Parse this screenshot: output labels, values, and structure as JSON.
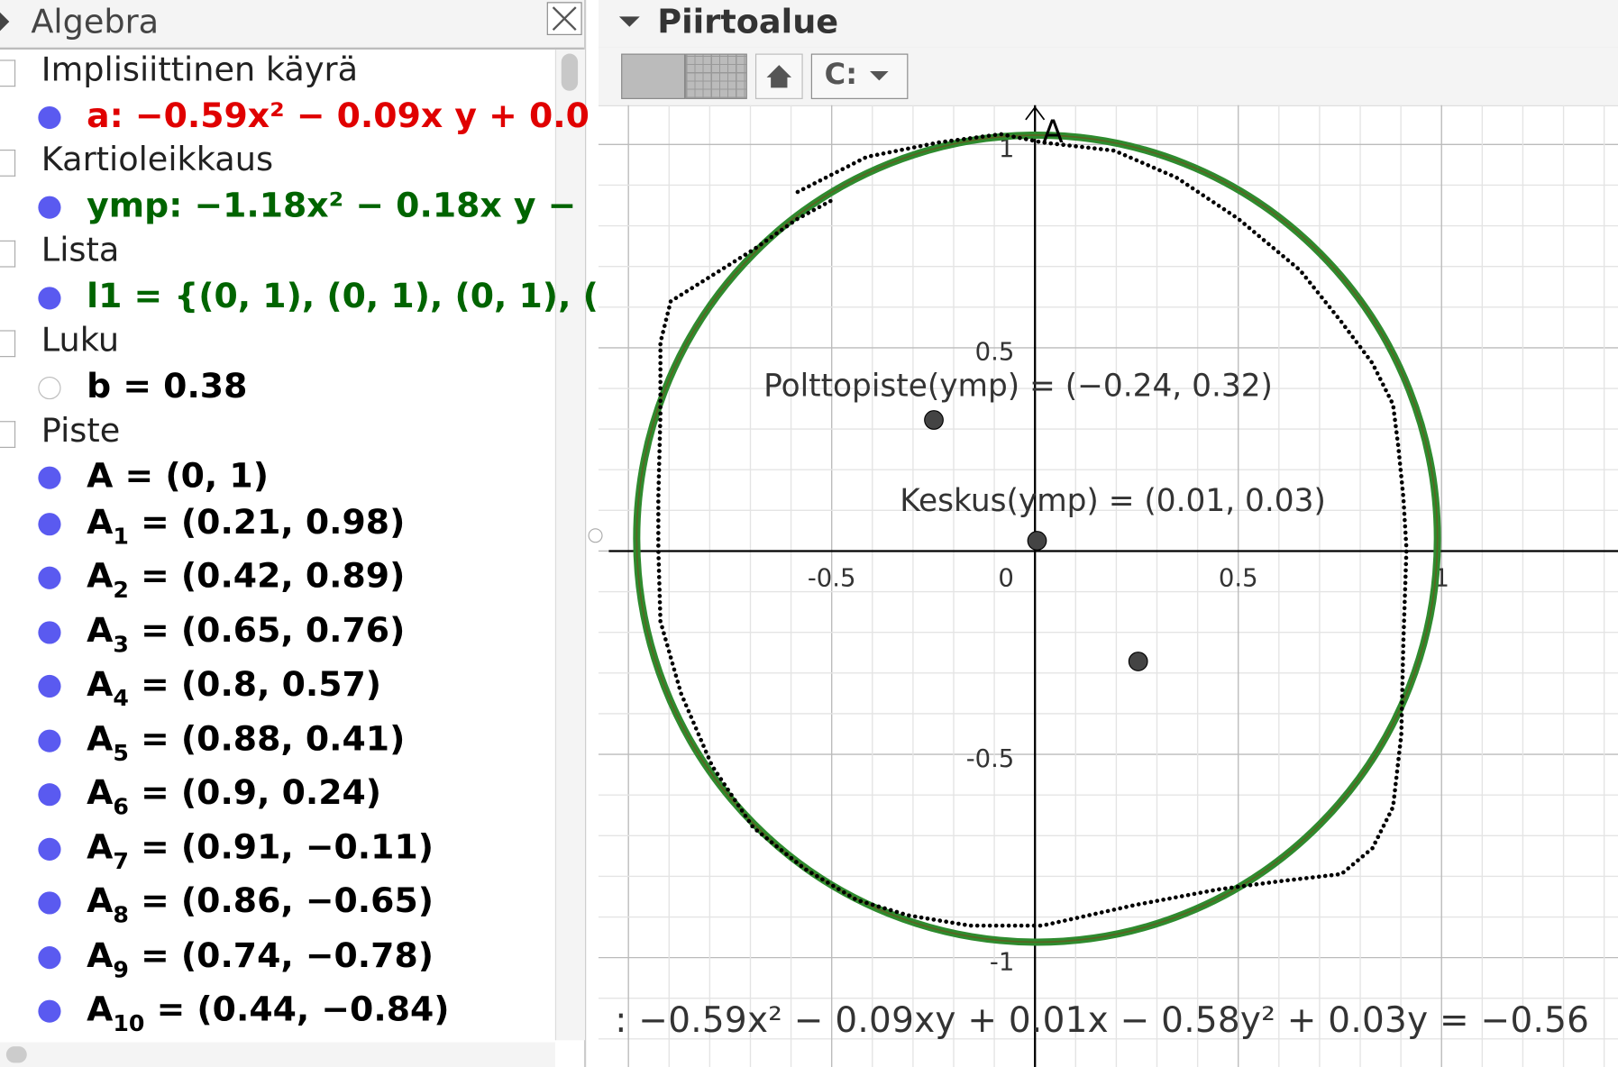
{
  "algebra": {
    "title": "Algebra",
    "groups": [
      {
        "heading": "Implisiittinen käyrä",
        "items": [
          {
            "name": "a: −0.59x² − 0.09x y + 0.0",
            "color": "#e00000",
            "filled": true
          }
        ]
      },
      {
        "heading": "Kartioleikkaus",
        "items": [
          {
            "name": "ymp: −1.18x² − 0.18x y −",
            "color": "#006400",
            "filled": true
          }
        ]
      },
      {
        "heading": "Lista",
        "items": [
          {
            "name": "l1 = {(0, 1), (0, 1), (0, 1), (",
            "color": "#006400",
            "filled": true
          }
        ]
      },
      {
        "heading": "Luku",
        "items": [
          {
            "name": "b = 0.38",
            "color": "#000000",
            "filled": false
          }
        ]
      },
      {
        "heading": "Piste",
        "items": [
          {
            "name": "A = (0, 1)",
            "color": "#000000",
            "filled": true
          },
          {
            "name": "A",
            "sub": "1",
            "rest": " = (0.21, 0.98)",
            "color": "#000000",
            "filled": true
          },
          {
            "name": "A",
            "sub": "2",
            "rest": " = (0.42, 0.89)",
            "color": "#000000",
            "filled": true
          },
          {
            "name": "A",
            "sub": "3",
            "rest": " = (0.65, 0.76)",
            "color": "#000000",
            "filled": true
          },
          {
            "name": "A",
            "sub": "4",
            "rest": " = (0.8, 0.57)",
            "color": "#000000",
            "filled": true
          },
          {
            "name": "A",
            "sub": "5",
            "rest": " = (0.88, 0.41)",
            "color": "#000000",
            "filled": true
          },
          {
            "name": "A",
            "sub": "6",
            "rest": " = (0.9, 0.24)",
            "color": "#000000",
            "filled": true
          },
          {
            "name": "A",
            "sub": "7",
            "rest": " = (0.91, −0.11)",
            "color": "#000000",
            "filled": true
          },
          {
            "name": "A",
            "sub": "8",
            "rest": " = (0.86, −0.65)",
            "color": "#000000",
            "filled": true
          },
          {
            "name": "A",
            "sub": "9",
            "rest": " = (0.74, −0.78)",
            "color": "#000000",
            "filled": true
          },
          {
            "name": "A",
            "sub": "10",
            "rest": " = (0.44, −0.84)",
            "color": "#000000",
            "filled": true
          }
        ]
      }
    ]
  },
  "graphics": {
    "title": "Piirtoalue",
    "toolbar_menu": "C:",
    "xticks": [
      {
        "value": -0.5,
        "label": "-0.5"
      },
      0,
      0.5,
      1
    ],
    "yticks": [
      1,
      0.5,
      {
        "value": -0.5,
        "label": "-0.5"
      },
      {
        "value": -1,
        "label": "-1"
      }
    ],
    "point_label": "A",
    "focus_label": "Polttopiste(ymp) = (−0.24, 0.32)",
    "center_label": "Keskus(ymp) = (0.01, 0.03)",
    "equation": ": −0.59x² − 0.09xy + 0.01x − 0.58y² + 0.03y = −0.56"
  }
}
